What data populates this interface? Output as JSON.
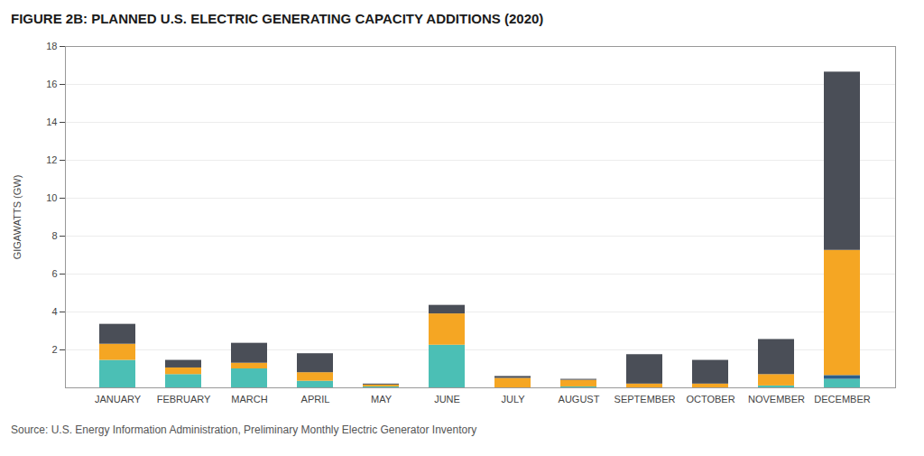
{
  "chart_data": {
    "type": "bar",
    "stacked": true,
    "title": "FIGURE 2B: PLANNED U.S. ELECTRIC GENERATING CAPACITY ADDITIONS (2020)",
    "ylabel": "GIGAWATTS (GW)",
    "caption": "Source: U.S. Energy Information Administration, Preliminary Monthly Electric Generator Inventory",
    "categories": [
      "JANUARY",
      "FEBRUARY",
      "MARCH",
      "APRIL",
      "MAY",
      "JUNE",
      "JULY",
      "AUGUST",
      "SEPTEMBER",
      "OCTOBER",
      "NOVEMBER",
      "DECEMBER"
    ],
    "series": [
      {
        "color": "#4BBFB5",
        "values": [
          1.45,
          0.7,
          1.0,
          0.35,
          0.05,
          2.25,
          0.0,
          0.05,
          0.0,
          0.0,
          0.1,
          0.45
        ]
      },
      {
        "color": "#2C5F8A",
        "values": [
          0.0,
          0.0,
          0.0,
          0.0,
          0.0,
          0.0,
          0.0,
          0.0,
          0.0,
          0.0,
          0.0,
          0.2
        ]
      },
      {
        "color": "#F5A623",
        "values": [
          0.85,
          0.35,
          0.3,
          0.45,
          0.1,
          1.65,
          0.5,
          0.35,
          0.2,
          0.2,
          0.6,
          6.6
        ]
      },
      {
        "color": "#4A4E57",
        "values": [
          1.05,
          0.4,
          1.05,
          1.0,
          0.05,
          0.45,
          0.1,
          0.05,
          1.55,
          1.25,
          1.85,
          9.4
        ]
      }
    ],
    "ylim": [
      0,
      18
    ],
    "yticks": [
      2,
      4,
      6,
      8,
      10,
      12,
      14,
      16,
      18
    ],
    "grid": true
  }
}
